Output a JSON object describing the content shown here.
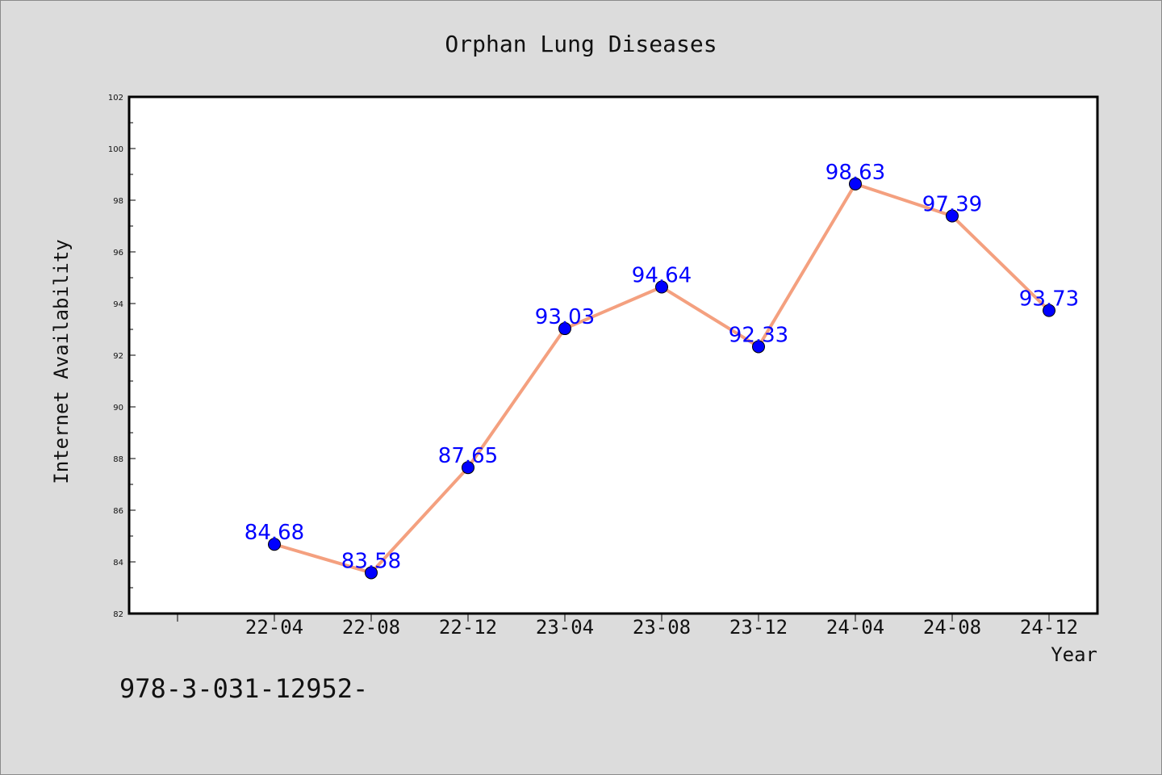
{
  "chart_data": {
    "type": "line",
    "title": "Orphan Lung Diseases",
    "xlabel": "Year",
    "ylabel": "Internet Availability",
    "categories": [
      "22-04",
      "22-08",
      "22-12",
      "23-04",
      "23-08",
      "23-12",
      "24-04",
      "24-08",
      "24-12"
    ],
    "series": [
      {
        "values": [
          84.68,
          83.58,
          87.65,
          93.03,
          94.64,
          92.33,
          98.63,
          97.39,
          93.73
        ],
        "labels": [
          "84.68",
          "83.58",
          "87.65",
          "93.03",
          "94.64",
          "92.33",
          "98.63",
          "97.39",
          "93.73"
        ]
      }
    ],
    "ylim": [
      82,
      102
    ],
    "yticks": [
      82,
      84,
      86,
      88,
      90,
      92,
      94,
      96,
      98,
      100,
      102
    ],
    "yminor_step": 1,
    "grid": false,
    "line_color": "#f4a07f",
    "marker_color": "#0000ff",
    "label_color": "#0000ff",
    "footnote": "978-3-031-12952-"
  }
}
